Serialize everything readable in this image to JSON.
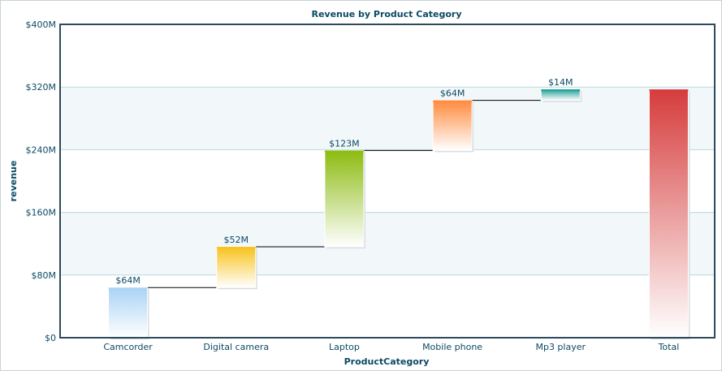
{
  "chart_data": {
    "type": "waterfall",
    "title": "Revenue by Product Category",
    "xlabel": "ProductCategory",
    "ylabel": "revenue",
    "ylim": [
      0,
      400
    ],
    "yticks": [
      0,
      80,
      160,
      240,
      320,
      400
    ],
    "ytick_labels": [
      "$0",
      "$80M",
      "$160M",
      "$240M",
      "$320M",
      "$400M"
    ],
    "categories": [
      "Camcorder",
      "Digital camera",
      "Laptop",
      "Mobile phone",
      "Mp3 player",
      "Total"
    ],
    "values": [
      64,
      52,
      123,
      64,
      14,
      317
    ],
    "value_labels": [
      "$64M",
      "$52M",
      "$123M",
      "$64M",
      "$14M",
      ""
    ],
    "is_total": [
      false,
      false,
      false,
      false,
      false,
      true
    ],
    "colors": [
      "#a9d3f5",
      "#f7c21a",
      "#8cbb10",
      "#ff8a3d",
      "#1f9e96",
      "#d63c3c"
    ],
    "band_color": "#f2f7fa",
    "gridline_color": "#bcd9de",
    "frame_color": "#2d4a5a",
    "connector_color": "#000000",
    "text_color": "#0b4a63"
  }
}
